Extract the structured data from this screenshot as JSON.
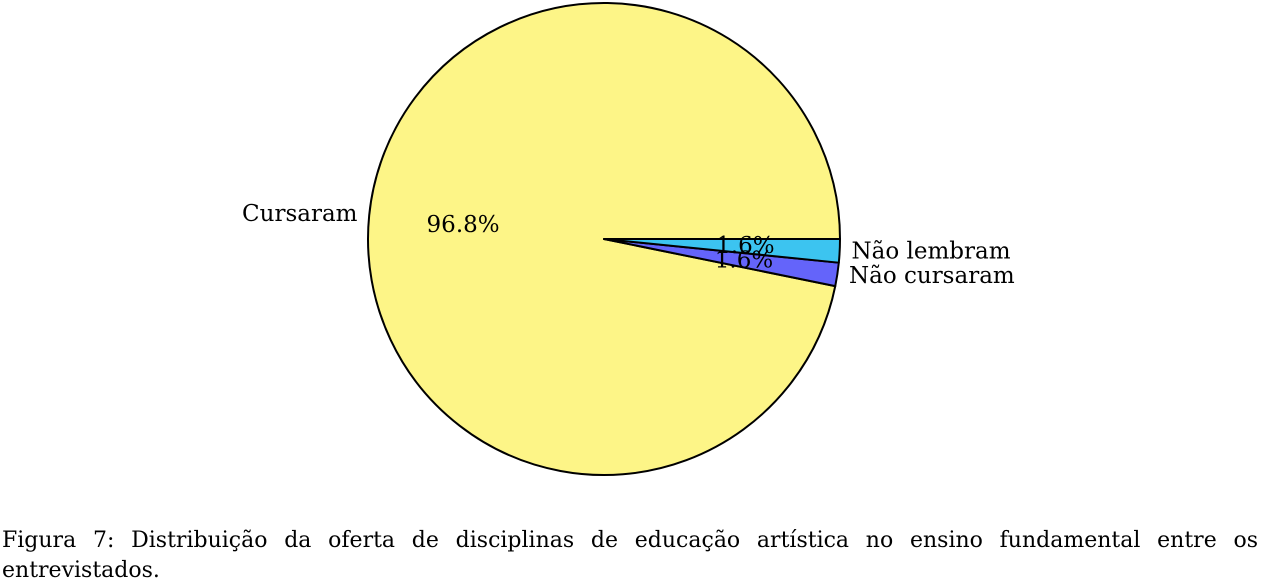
{
  "chart_data": {
    "type": "pie",
    "slices": [
      {
        "label": "Cursaram",
        "value": 96.8,
        "value_label": "96.8%",
        "color": "#fdf587"
      },
      {
        "label": "Não cursaram",
        "value": 1.6,
        "value_label": "1.6%",
        "color": "#6464fa"
      },
      {
        "label": "Não lembram",
        "value": 1.6,
        "value_label": "1.6%",
        "color": "#3cc4f0"
      }
    ],
    "start_angle_deg": 0,
    "direction": "counterclockwise"
  },
  "caption": {
    "label": "Figura 7:",
    "text": "Distribuição da oferta de disciplinas de educação artística no ensino fundamental entre os entrevistados."
  }
}
